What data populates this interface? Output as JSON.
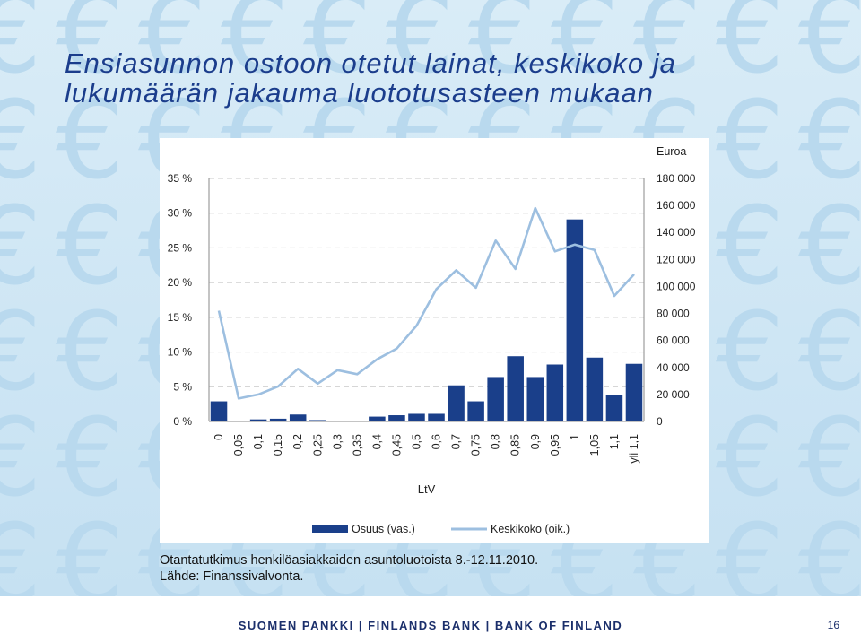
{
  "title_line1": "Ensiasunnon ostoon otetut lainat, keskikoko ja",
  "title_line2": "lukumäärän jakauma luototusasteen mukaan",
  "caption_line1": "Otantatutkimus henkilöasiakkaiden asuntoluotoista 8.-12.11.2010.",
  "caption_line2": "Lähde: Finanssivalvonta.",
  "footer": "SUOMEN PANKKI | FINLANDS BANK | BANK OF FINLAND",
  "page_number": "16",
  "colors": {
    "bar": "#1a3f8a",
    "line": "#9dbfe0",
    "title": "#1b3d8c"
  },
  "chart_data": {
    "type": "bar+line",
    "xlabel": "LtV",
    "y_left_unit_label": "",
    "y_right_unit_label": "Euroa",
    "y_left_ticks": [
      "0 %",
      "5 %",
      "10 %",
      "15 %",
      "20 %",
      "25 %",
      "30 %",
      "35 %"
    ],
    "y_right_ticks": [
      "0",
      "20 000",
      "40 000",
      "60 000",
      "80 000",
      "100 000",
      "120 000",
      "140 000",
      "160 000",
      "180 000"
    ],
    "ylim_left": [
      0,
      35
    ],
    "ylim_right": [
      0,
      180000
    ],
    "categories": [
      "0",
      "0,05",
      "0,1",
      "0,15",
      "0,2",
      "0,25",
      "0,3",
      "0,35",
      "0,4",
      "0,45",
      "0,5",
      "0,6",
      "0,7",
      "0,75",
      "0,8",
      "0,85",
      "0,9",
      "0,95",
      "1",
      "1,05",
      "1,1",
      "yli 1,1"
    ],
    "series": [
      {
        "name": "Osuus (vas.)",
        "type": "bar",
        "axis": "left",
        "values": [
          2.9,
          0.1,
          0.3,
          0.4,
          1.0,
          0.2,
          0.1,
          0.0,
          0.7,
          0.9,
          1.1,
          1.1,
          5.2,
          2.9,
          6.4,
          9.4,
          6.4,
          8.2,
          29.1,
          9.2,
          3.8,
          8.3
        ]
      },
      {
        "name": "Keskikoko (oik.)",
        "type": "line",
        "axis": "right",
        "values": [
          82000,
          17000,
          20000,
          26000,
          39000,
          28000,
          38000,
          35000,
          46000,
          54000,
          71000,
          98000,
          112000,
          99000,
          134000,
          113000,
          158000,
          126000,
          131000,
          127000,
          93000,
          109000
        ]
      }
    ],
    "legend_position": "bottom"
  }
}
